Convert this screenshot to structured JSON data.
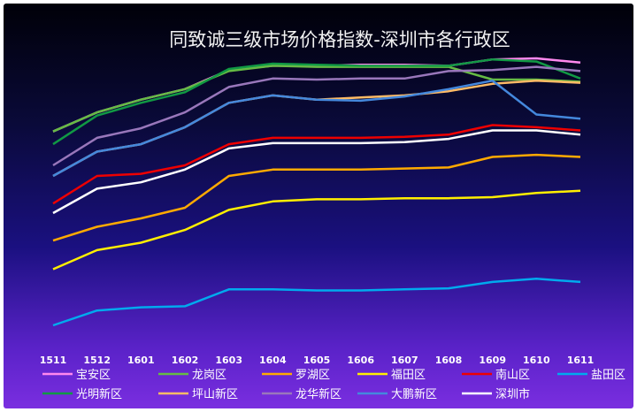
{
  "chart_data": {
    "type": "line",
    "title": "同致诚三级市场价格指数-深圳市各行政区",
    "xlabel": "",
    "ylabel": "",
    "grid": false,
    "legend_position": "bottom",
    "categories": [
      "1511",
      "1512",
      "1601",
      "1602",
      "1603",
      "1604",
      "1605",
      "1606",
      "1607",
      "1608",
      "1609",
      "1610",
      "1611"
    ],
    "ylim": [
      0,
      100
    ],
    "series": [
      {
        "name": "宝安区",
        "color": "#ff88ee",
        "values": [
          68,
          77,
          83,
          88,
          97,
          99,
          99,
          99.5,
          99.5,
          99,
          102,
          102.5,
          100.5
        ]
      },
      {
        "name": "龙岗区",
        "color": "#66bb44",
        "values": [
          68,
          77,
          83,
          88,
          96.5,
          99,
          98.5,
          98.5,
          98.5,
          98.5,
          92.5,
          92.5,
          91.5
        ]
      },
      {
        "name": "罗湖区",
        "color": "#ffaa00",
        "values": [
          16.5,
          23,
          27,
          32,
          47,
          50,
          50,
          50,
          50.5,
          51,
          56,
          57,
          56
        ]
      },
      {
        "name": "福田区",
        "color": "#ffee00",
        "values": [
          3,
          12,
          15.5,
          21.5,
          31,
          35,
          36,
          36,
          36.5,
          36.5,
          37,
          39,
          40
        ]
      },
      {
        "name": "南山区",
        "color": "#ee0000",
        "values": [
          34,
          47,
          48,
          52,
          62,
          65,
          65,
          65,
          65.5,
          66.5,
          71,
          70,
          68.5
        ]
      },
      {
        "name": "盐田区",
        "color": "#00aaee",
        "values": [
          -23.5,
          -16.5,
          -15,
          -14.5,
          -6.5,
          -6.5,
          -7,
          -7,
          -6.5,
          -6,
          -3,
          -1.5,
          -3
        ]
      },
      {
        "name": "光明新区",
        "color": "#119944",
        "values": [
          62,
          75.5,
          81.5,
          86.5,
          97.5,
          100,
          99.5,
          99,
          99,
          99,
          102,
          101,
          93
        ]
      },
      {
        "name": "坪山新区",
        "color": "#ffbb66",
        "values": [
          47,
          58.5,
          62,
          70,
          81.5,
          85,
          83,
          84,
          85,
          87,
          90.5,
          92,
          91
        ]
      },
      {
        "name": "龙华新区",
        "color": "#9977bb",
        "values": [
          52,
          65,
          69.5,
          77,
          89,
          93,
          92.5,
          93,
          93,
          96.5,
          97,
          98.5,
          96.5
        ]
      },
      {
        "name": "大鹏新区",
        "color": "#4488dd",
        "values": [
          47,
          58.5,
          62,
          70,
          81.5,
          85,
          83,
          82.5,
          84.5,
          88,
          92,
          76,
          74
        ]
      },
      {
        "name": "深圳市",
        "color": "#ffffff",
        "values": [
          29.5,
          41,
          44,
          50,
          60,
          62.5,
          62.5,
          62.5,
          63,
          64.5,
          68.5,
          68.5,
          66.5
        ]
      }
    ]
  }
}
